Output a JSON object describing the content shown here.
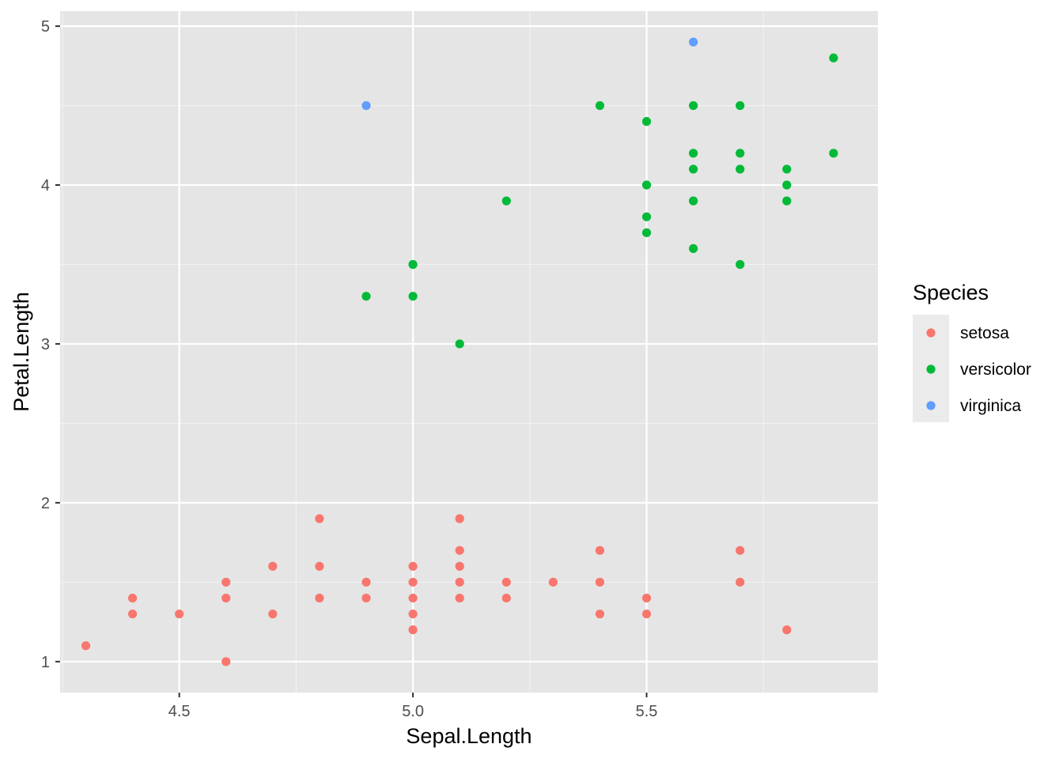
{
  "chart_data": {
    "type": "scatter",
    "title": "",
    "xlabel": "Sepal.Length",
    "ylabel": "Petal.Length",
    "xlim": [
      4.245,
      5.995
    ],
    "ylim": [
      0.805,
      5.095
    ],
    "x_ticks": [
      4.5,
      5.0,
      5.5
    ],
    "x_tick_labels": [
      "4.5",
      "5.0",
      "5.5"
    ],
    "y_ticks": [
      1,
      2,
      3,
      4,
      5
    ],
    "y_tick_labels": [
      "1",
      "2",
      "3",
      "4",
      "5"
    ],
    "grid": true,
    "legend": {
      "title": "Species",
      "position": "right"
    },
    "series": [
      {
        "name": "setosa",
        "color": "#F8766D",
        "points": [
          [
            4.3,
            1.1
          ],
          [
            4.4,
            1.3
          ],
          [
            4.4,
            1.4
          ],
          [
            4.5,
            1.3
          ],
          [
            4.6,
            1.0
          ],
          [
            4.6,
            1.4
          ],
          [
            4.6,
            1.5
          ],
          [
            4.7,
            1.3
          ],
          [
            4.7,
            1.6
          ],
          [
            4.8,
            1.4
          ],
          [
            4.8,
            1.6
          ],
          [
            4.8,
            1.9
          ],
          [
            4.9,
            1.4
          ],
          [
            4.9,
            1.5
          ],
          [
            5.0,
            1.2
          ],
          [
            5.0,
            1.3
          ],
          [
            5.0,
            1.4
          ],
          [
            5.0,
            1.5
          ],
          [
            5.0,
            1.6
          ],
          [
            5.1,
            1.4
          ],
          [
            5.1,
            1.5
          ],
          [
            5.1,
            1.6
          ],
          [
            5.1,
            1.7
          ],
          [
            5.1,
            1.9
          ],
          [
            5.2,
            1.4
          ],
          [
            5.2,
            1.5
          ],
          [
            5.3,
            1.5
          ],
          [
            5.4,
            1.3
          ],
          [
            5.4,
            1.5
          ],
          [
            5.4,
            1.7
          ],
          [
            5.5,
            1.3
          ],
          [
            5.5,
            1.4
          ],
          [
            5.7,
            1.5
          ],
          [
            5.7,
            1.7
          ],
          [
            5.8,
            1.2
          ]
        ]
      },
      {
        "name": "versicolor",
        "color": "#00BA38",
        "points": [
          [
            4.9,
            3.3
          ],
          [
            5.0,
            3.3
          ],
          [
            5.0,
            3.5
          ],
          [
            5.1,
            3.0
          ],
          [
            5.2,
            3.9
          ],
          [
            5.4,
            4.5
          ],
          [
            5.5,
            3.7
          ],
          [
            5.5,
            3.8
          ],
          [
            5.5,
            4.0
          ],
          [
            5.5,
            4.4
          ],
          [
            5.6,
            3.6
          ],
          [
            5.6,
            3.9
          ],
          [
            5.6,
            4.1
          ],
          [
            5.6,
            4.2
          ],
          [
            5.6,
            4.5
          ],
          [
            5.7,
            3.5
          ],
          [
            5.7,
            4.1
          ],
          [
            5.7,
            4.2
          ],
          [
            5.7,
            4.5
          ],
          [
            5.8,
            3.9
          ],
          [
            5.8,
            4.0
          ],
          [
            5.8,
            4.1
          ],
          [
            5.9,
            4.2
          ],
          [
            5.9,
            4.8
          ]
        ]
      },
      {
        "name": "virginica",
        "color": "#619CFF",
        "points": [
          [
            4.9,
            4.5
          ],
          [
            5.6,
            4.9
          ]
        ]
      }
    ]
  }
}
